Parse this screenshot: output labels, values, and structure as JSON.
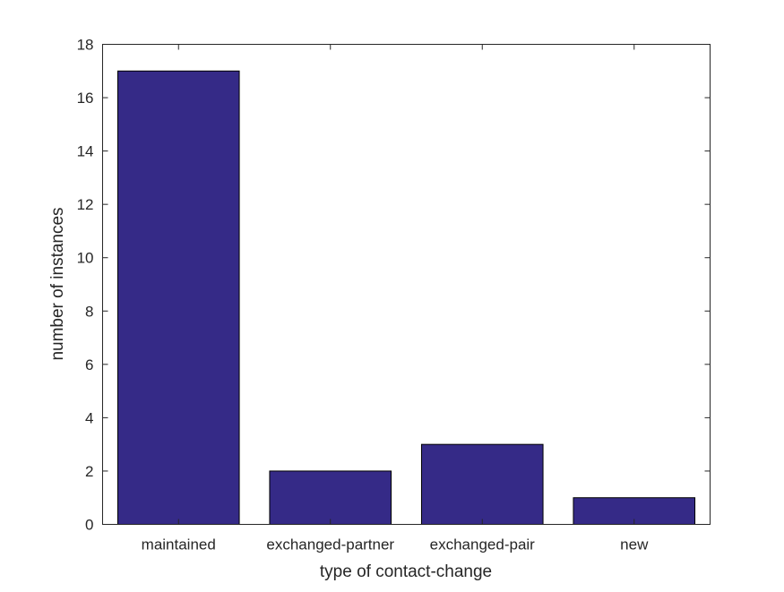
{
  "chart_data": {
    "type": "bar",
    "categories": [
      "maintained",
      "exchanged-partner",
      "exchanged-pair",
      "new"
    ],
    "values": [
      17,
      2,
      3,
      1
    ],
    "title": "",
    "xlabel": "type of contact-change",
    "ylabel": "number of instances",
    "ylim": [
      0,
      18
    ],
    "yticks": [
      0,
      2,
      4,
      6,
      8,
      10,
      12,
      14,
      16,
      18
    ],
    "grid": false,
    "bar_color": "#352a87"
  }
}
